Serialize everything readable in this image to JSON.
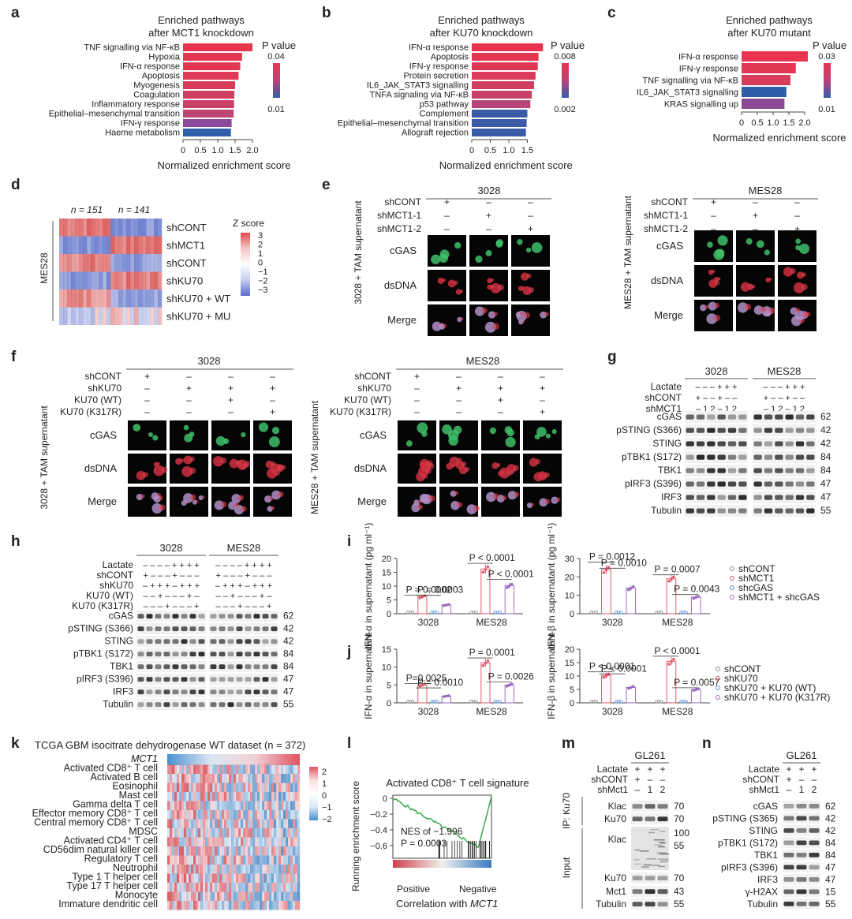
{
  "panels": {
    "a": {
      "letter": "a",
      "title1": "Enriched pathways",
      "title2": "after MCT1 knockdown",
      "xlabel": "Normalized enrichment score",
      "ticks": [
        "0",
        "0.5",
        "1.0",
        "1.5",
        "2.0"
      ],
      "pvalue_label": "P value",
      "legend_hi": "0.04",
      "legend_lo": "0.01",
      "pathways": [
        "TNF signalling via NF-κB",
        "Hypoxia",
        "IFN-α response",
        "Apoptosis",
        "Myogenesis",
        "Coagulation",
        "Inflammatory response",
        "Epithelial–mesenchymal transition",
        "IFN-γ response",
        "Haeme metabolism"
      ],
      "nes": [
        2.0,
        1.7,
        1.65,
        1.6,
        1.5,
        1.48,
        1.47,
        1.46,
        1.4,
        1.38
      ],
      "colors": [
        "#e8344e",
        "#e43650",
        "#e23752",
        "#de3955",
        "#d83c5a",
        "#d23e60",
        "#ca4168",
        "#be4674",
        "#8a4a98",
        "#2f5fa8"
      ]
    },
    "b": {
      "letter": "b",
      "title1": "Enriched pathways",
      "title2": "after KU70 knockdown",
      "xlabel": "Normalized enrichment score",
      "ticks": [
        "0",
        "0.5",
        "1.0",
        "1.5"
      ],
      "pvalue_label": "P value",
      "legend_hi": "0.008",
      "legend_lo": "0.002",
      "pathways": [
        "IFN-α response",
        "Apoptosis",
        "IFN-γ response",
        "Protein secretion",
        "IL6_JAK_STAT3 signalling",
        "TNFA signaling via NF-κB",
        "p53 pathway",
        "Complement",
        "Epithelial–mesenchymal transition",
        "Allograft rejection"
      ],
      "nes": [
        1.92,
        1.8,
        1.78,
        1.72,
        1.68,
        1.62,
        1.58,
        1.5,
        1.48,
        1.46
      ],
      "colors": [
        "#e8344e",
        "#e43650",
        "#df3854",
        "#d93b59",
        "#d23e60",
        "#c84169",
        "#b94578",
        "#3a5ca6",
        "#3a5ca6",
        "#3a5ca6"
      ]
    },
    "c": {
      "letter": "c",
      "title1": "Enriched pathways",
      "title2": "after KU70 mutant",
      "xlabel": "Normalized enrichment score",
      "ticks": [
        "0",
        "0.5",
        "1.0",
        "1.5",
        "2.0"
      ],
      "pvalue_label": "P value",
      "legend_hi": "0.03",
      "legend_lo": "0.01",
      "pathways": [
        "IFN-α response",
        "IFN-γ response",
        "TNF signalling via NF-κB",
        "IL6_JAK_STAT3 signalling",
        "KRAS signalling up"
      ],
      "nes": [
        2.1,
        1.72,
        1.55,
        1.42,
        1.36
      ],
      "colors": [
        "#e8344e",
        "#e23752",
        "#d83c5a",
        "#2f5fa8",
        "#8a4a98"
      ]
    },
    "d": {
      "letter": "d",
      "n1": "n = 151",
      "n2": "n = 141",
      "side_label": "MES28",
      "zscore_label": "Z score",
      "rows": [
        "shCONT",
        "shMCT1",
        "shCONT",
        "shKU70",
        "shKU70 + WT",
        "shKU70 + MU"
      ],
      "ticks": [
        "3",
        "2",
        "1",
        "0",
        "−1",
        "−2",
        "−3"
      ],
      "row_pattern": [
        0.7,
        -0.7,
        0.6,
        -0.6,
        0.5,
        -0.1
      ]
    },
    "e": {
      "letter": "e",
      "left": {
        "group": "3028",
        "side": "3028 + TAM supernatant"
      },
      "right": {
        "group": "MES28",
        "side": "MES28 + TAM supernatant"
      },
      "conditions": [
        "shCONT",
        "shMCT1-1",
        "shMCT1-2"
      ],
      "signs": [
        [
          "+",
          "–",
          "–"
        ],
        [
          "–",
          "+",
          "–"
        ],
        [
          "–",
          "–",
          "+"
        ]
      ],
      "stains": [
        "cGAS",
        "dsDNA",
        "Merge"
      ]
    },
    "f": {
      "letter": "f",
      "left": {
        "group": "3028",
        "side": "3028 + TAM supernatant"
      },
      "right": {
        "group": "MES28",
        "side": "MES28 + TAM supernatant"
      },
      "conditions": [
        "shCONT",
        "shKU70",
        "KU70 (WT)",
        "KU70 (K317R)"
      ],
      "signs": [
        [
          "+",
          "–",
          "–",
          "–"
        ],
        [
          "–",
          "+",
          "+",
          "+"
        ],
        [
          "–",
          "–",
          "+",
          "–"
        ],
        [
          "–",
          "–",
          "–",
          "+"
        ]
      ],
      "stains": [
        "cGAS",
        "dsDNA",
        "Merge"
      ]
    },
    "g": {
      "letter": "g",
      "groups": [
        "3028",
        "MES28"
      ],
      "conditions": [
        "Lactate",
        "shCONT",
        "shMCT1"
      ],
      "signs": [
        "– – – + + +",
        "+ – – + – –",
        "– 1 2 – 1 2"
      ],
      "bands": [
        "cGAS",
        "pSTING (S366)",
        "STING",
        "pTBK1 (S172)",
        "TBK1",
        "pIRF3 (S396)",
        "IRF3",
        "Tubulin"
      ],
      "kda": [
        "62",
        "42",
        "42",
        "84",
        "84",
        "47",
        "47",
        "55"
      ]
    },
    "h": {
      "letter": "h",
      "groups": [
        "3028",
        "MES28"
      ],
      "conditions": [
        "Lactate",
        "shCONT",
        "shKU70",
        "KU70 (WT)",
        "KU70 (K317R)"
      ],
      "signs": [
        "– – – – + + + +",
        "+ – – – + – – –",
        "– + + + – + + +",
        "– – + – – – + –",
        "– – – + – – – +"
      ],
      "bands": [
        "cGAS",
        "pSTING (S366)",
        "STING",
        "pTBK1 (S172)",
        "TBK1",
        "pIRF3 (S396)",
        "IRF3",
        "Tubulin"
      ],
      "kda": [
        "62",
        "42",
        "42",
        "84",
        "84",
        "47",
        "47",
        "55"
      ]
    },
    "i": {
      "letter": "i",
      "legend": [
        "shCONT",
        "shMCT1",
        "shcGAS",
        "shMCT1 + shcGAS"
      ],
      "legend_colors": [
        "#888888",
        "#e05a6a",
        "#5a8ad8",
        "#9a6ac0"
      ]
    },
    "j": {
      "letter": "j",
      "legend": [
        "shCONT",
        "shKU70",
        "shKU70 + KU70  (WT)",
        "shKU70 + KU70 (K317R)"
      ],
      "legend_colors": [
        "#888888",
        "#e05a6a",
        "#5a8ad8",
        "#9a6ac0"
      ]
    },
    "k": {
      "letter": "k",
      "title": "TCGA GBM isocitrate dehydrogenase WT dataset (n = 372)",
      "rows": [
        "MCT1",
        "Activated CD8⁺ T cell",
        "Activated B cell",
        "Eosinophil",
        "Mast cell",
        "Gamma delta T cell",
        "Effector memory CD8⁺ T cell",
        "Central memory CD8⁺ T cell",
        "MDSC",
        "Activated CD4⁺ T cell",
        "CD56dim natural killer cell",
        "Regulatory T cell",
        "Neutrophil",
        "Type 1 T helper cell",
        "Type 17 T helper cell",
        "Monocyte",
        "Immature dendritic cell"
      ],
      "ticks": [
        "2",
        "1",
        "0",
        "−1",
        "−2"
      ]
    },
    "l": {
      "letter": "l",
      "title": "Activated CD8⁺ T cell signature",
      "ylabel": "Running enrichment score",
      "yticks": [
        "0",
        "−0.2",
        "−0.4",
        "−0.6"
      ],
      "nes": "NES of −1.996",
      "pval": "P = 0.0003",
      "pos": "Positive",
      "neg": "Negative",
      "xlabel": "Correlation with MCT1"
    },
    "m": {
      "letter": "m",
      "header": "GL261",
      "conditions": [
        "Lactate",
        "shCONT",
        "shMct1"
      ],
      "signs": [
        [
          "+",
          "+",
          "+"
        ],
        [
          "+",
          "–",
          "–"
        ],
        [
          "–",
          "1",
          "2"
        ]
      ],
      "ip_label": "IP: Ku70",
      "input_label": "Input",
      "bands": [
        "Klac",
        "Ku70",
        "Klac",
        "Ku70",
        "Mct1",
        "Tubulin"
      ],
      "kda": [
        "70",
        "70",
        "100",
        "55",
        "70",
        "43",
        "55"
      ]
    },
    "n": {
      "letter": "n",
      "header": "GL261",
      "conditions": [
        "Lactate",
        "shCONT",
        "shMct1"
      ],
      "signs": [
        [
          "+",
          "+",
          "+"
        ],
        [
          "+",
          "–",
          "–"
        ],
        [
          "–",
          "1",
          "2"
        ]
      ],
      "bands": [
        "cGAS",
        "pSTING (S365)",
        "STING",
        "pTBK1 (S172)",
        "TBK1",
        "pIRF3 (S396)",
        "IRF3",
        "γ-H2AX",
        "Tubulin"
      ],
      "kda": [
        "62",
        "42",
        "42",
        "84",
        "84",
        "47",
        "47",
        "15",
        "55"
      ]
    }
  },
  "chart_data": [
    {
      "type": "bar",
      "id": "i_left",
      "ylabel": "IFN-α in supernatant (pg ml⁻¹)",
      "ylim": [
        0,
        20
      ],
      "yticks": [
        "0",
        "5",
        "10",
        "15",
        "20"
      ],
      "categories": [
        "3028",
        "MES28"
      ],
      "series": [
        {
          "name": "shCONT",
          "values": [
            0,
            0
          ]
        },
        {
          "name": "shMCT1",
          "values": [
            6.2,
            16.2
          ]
        },
        {
          "name": "shcGAS",
          "values": [
            0,
            0
          ]
        },
        {
          "name": "shMCT1 + shcGAS",
          "values": [
            3.2,
            10.2
          ]
        }
      ],
      "annotations": [
        "P = 0.0002",
        "P = 0.0003",
        "P < 0.0001",
        "P < 0.0001"
      ]
    },
    {
      "type": "bar",
      "id": "i_right",
      "ylabel": "IFN-β in supernatant (pg ml⁻¹)",
      "ylim": [
        0,
        30
      ],
      "yticks": [
        "0",
        "10",
        "20",
        "30"
      ],
      "categories": [
        "3028",
        "MES28"
      ],
      "series": [
        {
          "name": "shCONT",
          "values": [
            0,
            0
          ]
        },
        {
          "name": "shMCT1",
          "values": [
            24,
            19
          ]
        },
        {
          "name": "shcGAS",
          "values": [
            0,
            0
          ]
        },
        {
          "name": "shMCT1 + shcGAS",
          "values": [
            14,
            9
          ]
        }
      ],
      "annotations": [
        "P = 0.0012",
        "P = 0.0010",
        "P = 0.0007",
        "P = 0.0043"
      ]
    },
    {
      "type": "bar",
      "id": "j_left",
      "ylabel": "IFN-α in supernatant",
      "ylim": [
        0,
        15
      ],
      "yticks": [
        "0",
        "5",
        "10",
        "15"
      ],
      "categories": [
        "3028",
        "MES28"
      ],
      "series": [
        {
          "name": "shCONT",
          "values": [
            0,
            0
          ]
        },
        {
          "name": "shKU70",
          "values": [
            5,
            11.2
          ]
        },
        {
          "name": "shKU70 + KU70 (WT)",
          "values": [
            0,
            0
          ]
        },
        {
          "name": "shKU70 + KU70 (K317R)",
          "values": [
            1.9,
            5
          ]
        }
      ],
      "annotations": [
        "P=0.0025",
        "P = 0.0010",
        "P = 0.0001",
        "P = 0.0026"
      ]
    },
    {
      "type": "bar",
      "id": "j_right",
      "ylabel": "IFN-β in supernatant",
      "ylim": [
        0,
        20
      ],
      "yticks": [
        "0",
        "5",
        "10",
        "15",
        "20"
      ],
      "categories": [
        "3028",
        "MES28"
      ],
      "series": [
        {
          "name": "shCONT",
          "values": [
            0,
            0
          ]
        },
        {
          "name": "shKU70",
          "values": [
            10.2,
            15.5
          ]
        },
        {
          "name": "shKU70 + KU70 (WT)",
          "values": [
            0,
            0
          ]
        },
        {
          "name": "shKU70 + KU70 (K317R)",
          "values": [
            5.8,
            5
          ]
        }
      ],
      "annotations": [
        "P < 0.0001",
        "P < 0.0001",
        "P < 0.0001",
        "P = 0.0057"
      ]
    }
  ]
}
